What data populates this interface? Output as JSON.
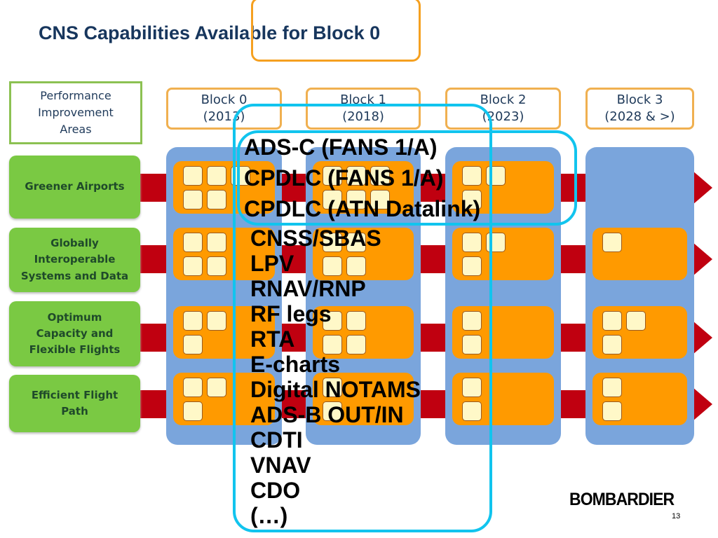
{
  "title": "CNS Capabilities Available for Block 0",
  "diagram": {
    "areas_header": "Performance\nImprovement\nAreas",
    "areas": [
      "Greener Airports",
      "Globally\nInteroperable\nSystems and Data",
      "Optimum\nCapacity and\nFlexible Flights",
      "Efficient Flight\nPath"
    ],
    "blocks": [
      {
        "name": "Block 0",
        "year": "(2013)"
      },
      {
        "name": "Block 1",
        "year": "(2018)"
      },
      {
        "name": "Block 2",
        "year": "(2023)"
      },
      {
        "name": "Block 3",
        "year": "(2028 & >)"
      }
    ]
  },
  "capabilities_list": [
    "CNSS/SBAS",
    "LPV",
    "RNAV/RNP",
    "RF legs",
    "RTA",
    "E-charts",
    "Digital NOTAMS",
    "ADS-B OUT/IN",
    "CDTI",
    "VNAV",
    "CDO",
    " (…)"
  ],
  "datalink_list": [
    "ADS-C (FANS 1/A)",
    "CPDLC (FANS 1/A)",
    "CPDLC (ATN Datalink)"
  ],
  "logo": "BOMBARDIER",
  "page_number": "13",
  "colors": {
    "title": "#17365d",
    "highlight_outline": "#f5a020",
    "callout_outline": "#11c4ee",
    "area_green": "#7ac943",
    "block_blue": "#7aa5dc",
    "module_orange": "#ff9a00",
    "arrow_red": "#c00010"
  }
}
